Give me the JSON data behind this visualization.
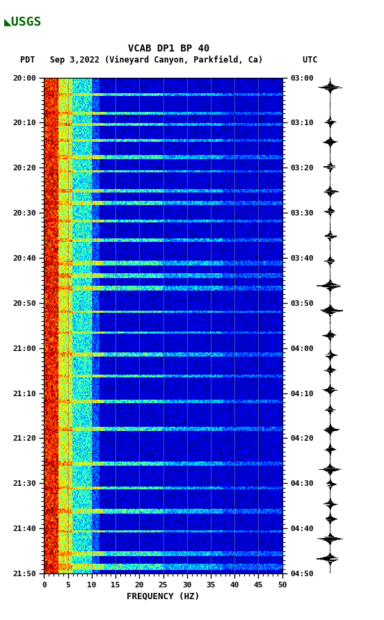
{
  "title_line1": "VCAB DP1 BP 40",
  "title_line2": "PDT   Sep 3,2022 (Vineyard Canyon, Parkfield, Ca)        UTC",
  "xlabel": "FREQUENCY (HZ)",
  "freq_min": 0,
  "freq_max": 50,
  "left_yticks": [
    "20:00",
    "20:10",
    "20:20",
    "20:30",
    "20:40",
    "20:50",
    "21:00",
    "21:10",
    "21:20",
    "21:30",
    "21:40",
    "21:50"
  ],
  "right_yticks": [
    "03:00",
    "03:10",
    "03:20",
    "03:30",
    "03:40",
    "03:50",
    "04:00",
    "04:10",
    "04:20",
    "04:30",
    "04:40",
    "04:50"
  ],
  "xticks": [
    0,
    5,
    10,
    15,
    20,
    25,
    30,
    35,
    40,
    45,
    50
  ],
  "vertical_lines_freq": [
    5,
    10,
    15,
    20,
    25,
    30,
    35,
    40,
    45
  ],
  "fig_bg": "#ffffff",
  "colormap": "jet",
  "figsize": [
    5.52,
    8.92
  ],
  "dpi": 100,
  "event_rows": [
    [
      13,
      15,
      50
    ],
    [
      28,
      30,
      50
    ],
    [
      37,
      39,
      50
    ],
    [
      50,
      52,
      50
    ],
    [
      63,
      66,
      50
    ],
    [
      75,
      77,
      50
    ],
    [
      90,
      93,
      50
    ],
    [
      100,
      103,
      50
    ],
    [
      115,
      117,
      50
    ],
    [
      130,
      133,
      50
    ],
    [
      148,
      152,
      50
    ],
    [
      158,
      162,
      50
    ],
    [
      168,
      172,
      50
    ],
    [
      188,
      190,
      50
    ],
    [
      205,
      207,
      50
    ],
    [
      222,
      225,
      50
    ],
    [
      240,
      242,
      50
    ],
    [
      260,
      263,
      50
    ],
    [
      282,
      285,
      50
    ],
    [
      310,
      313,
      50
    ],
    [
      330,
      332,
      50
    ],
    [
      348,
      352,
      50
    ],
    [
      365,
      367,
      50
    ],
    [
      382,
      386,
      50
    ],
    [
      392,
      397,
      50
    ]
  ]
}
